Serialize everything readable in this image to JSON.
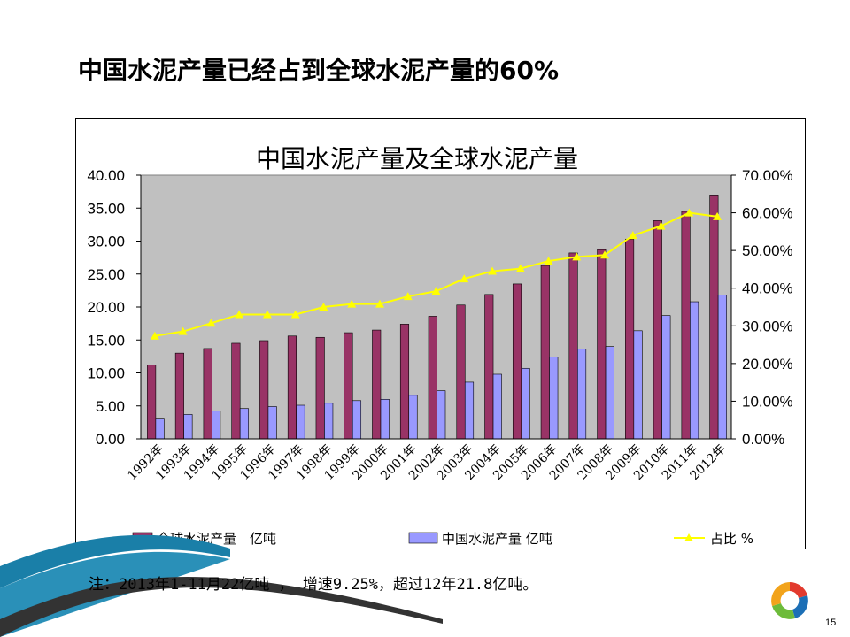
{
  "slide": {
    "title": "中国水泥产量已经占到全球水泥产量的60%",
    "note": "注：2013年1-11月22亿吨 ， 增速9.25%，超过12年21.8亿吨。",
    "page_number": "15"
  },
  "colors": {
    "global_bar": "#993366",
    "china_bar": "#9999ff",
    "ratio_line": "#ffff00",
    "plot_bg": "#c0c0c0",
    "teal_decor": "#1a7fa8"
  },
  "chart_data": {
    "type": "bar",
    "title": "中国水泥产量及全球水泥产量",
    "categories": [
      "1992年",
      "1993年",
      "1994年",
      "1995年",
      "1996年",
      "1997年",
      "1998年",
      "1999年",
      "2000年",
      "2001年",
      "2002年",
      "2003年",
      "2004年",
      "2005年",
      "2006年",
      "2007年",
      "2008年",
      "2009年",
      "2010年",
      "2011年",
      "2012年"
    ],
    "series": [
      {
        "name": "全球水泥产量　亿吨",
        "axis": "left",
        "kind": "bar",
        "values": [
          11.2,
          13.0,
          13.7,
          14.5,
          14.9,
          15.6,
          15.4,
          16.1,
          16.5,
          17.4,
          18.6,
          20.3,
          21.9,
          23.5,
          26.3,
          28.2,
          28.7,
          30.3,
          33.1,
          34.5,
          37.0
        ]
      },
      {
        "name": "中国水泥产量 亿吨",
        "axis": "right-scale-primary",
        "kind": "bar",
        "values": [
          3.0,
          3.7,
          4.2,
          4.6,
          4.9,
          5.1,
          5.4,
          5.8,
          6.0,
          6.6,
          7.3,
          8.6,
          9.8,
          10.7,
          12.4,
          13.6,
          14.0,
          16.4,
          18.7,
          20.8,
          21.8
        ]
      },
      {
        "name": "占比 %",
        "axis": "right",
        "kind": "line",
        "values": [
          0.273,
          0.285,
          0.307,
          0.33,
          0.33,
          0.33,
          0.35,
          0.358,
          0.358,
          0.378,
          0.392,
          0.425,
          0.445,
          0.452,
          0.472,
          0.483,
          0.488,
          0.54,
          0.565,
          0.6,
          0.59
        ]
      }
    ],
    "yaxis_left": {
      "ticks": [
        "0.00",
        "5.00",
        "10.00",
        "15.00",
        "20.00",
        "25.00",
        "30.00",
        "35.00",
        "40.00"
      ],
      "ylim": [
        0,
        40
      ]
    },
    "yaxis_right": {
      "ticks": [
        "0.00%",
        "10.00%",
        "20.00%",
        "30.00%",
        "40.00%",
        "50.00%",
        "60.00%",
        "70.00%"
      ],
      "ylim": [
        0,
        0.7
      ]
    },
    "grid": false,
    "legend_position": "bottom"
  }
}
